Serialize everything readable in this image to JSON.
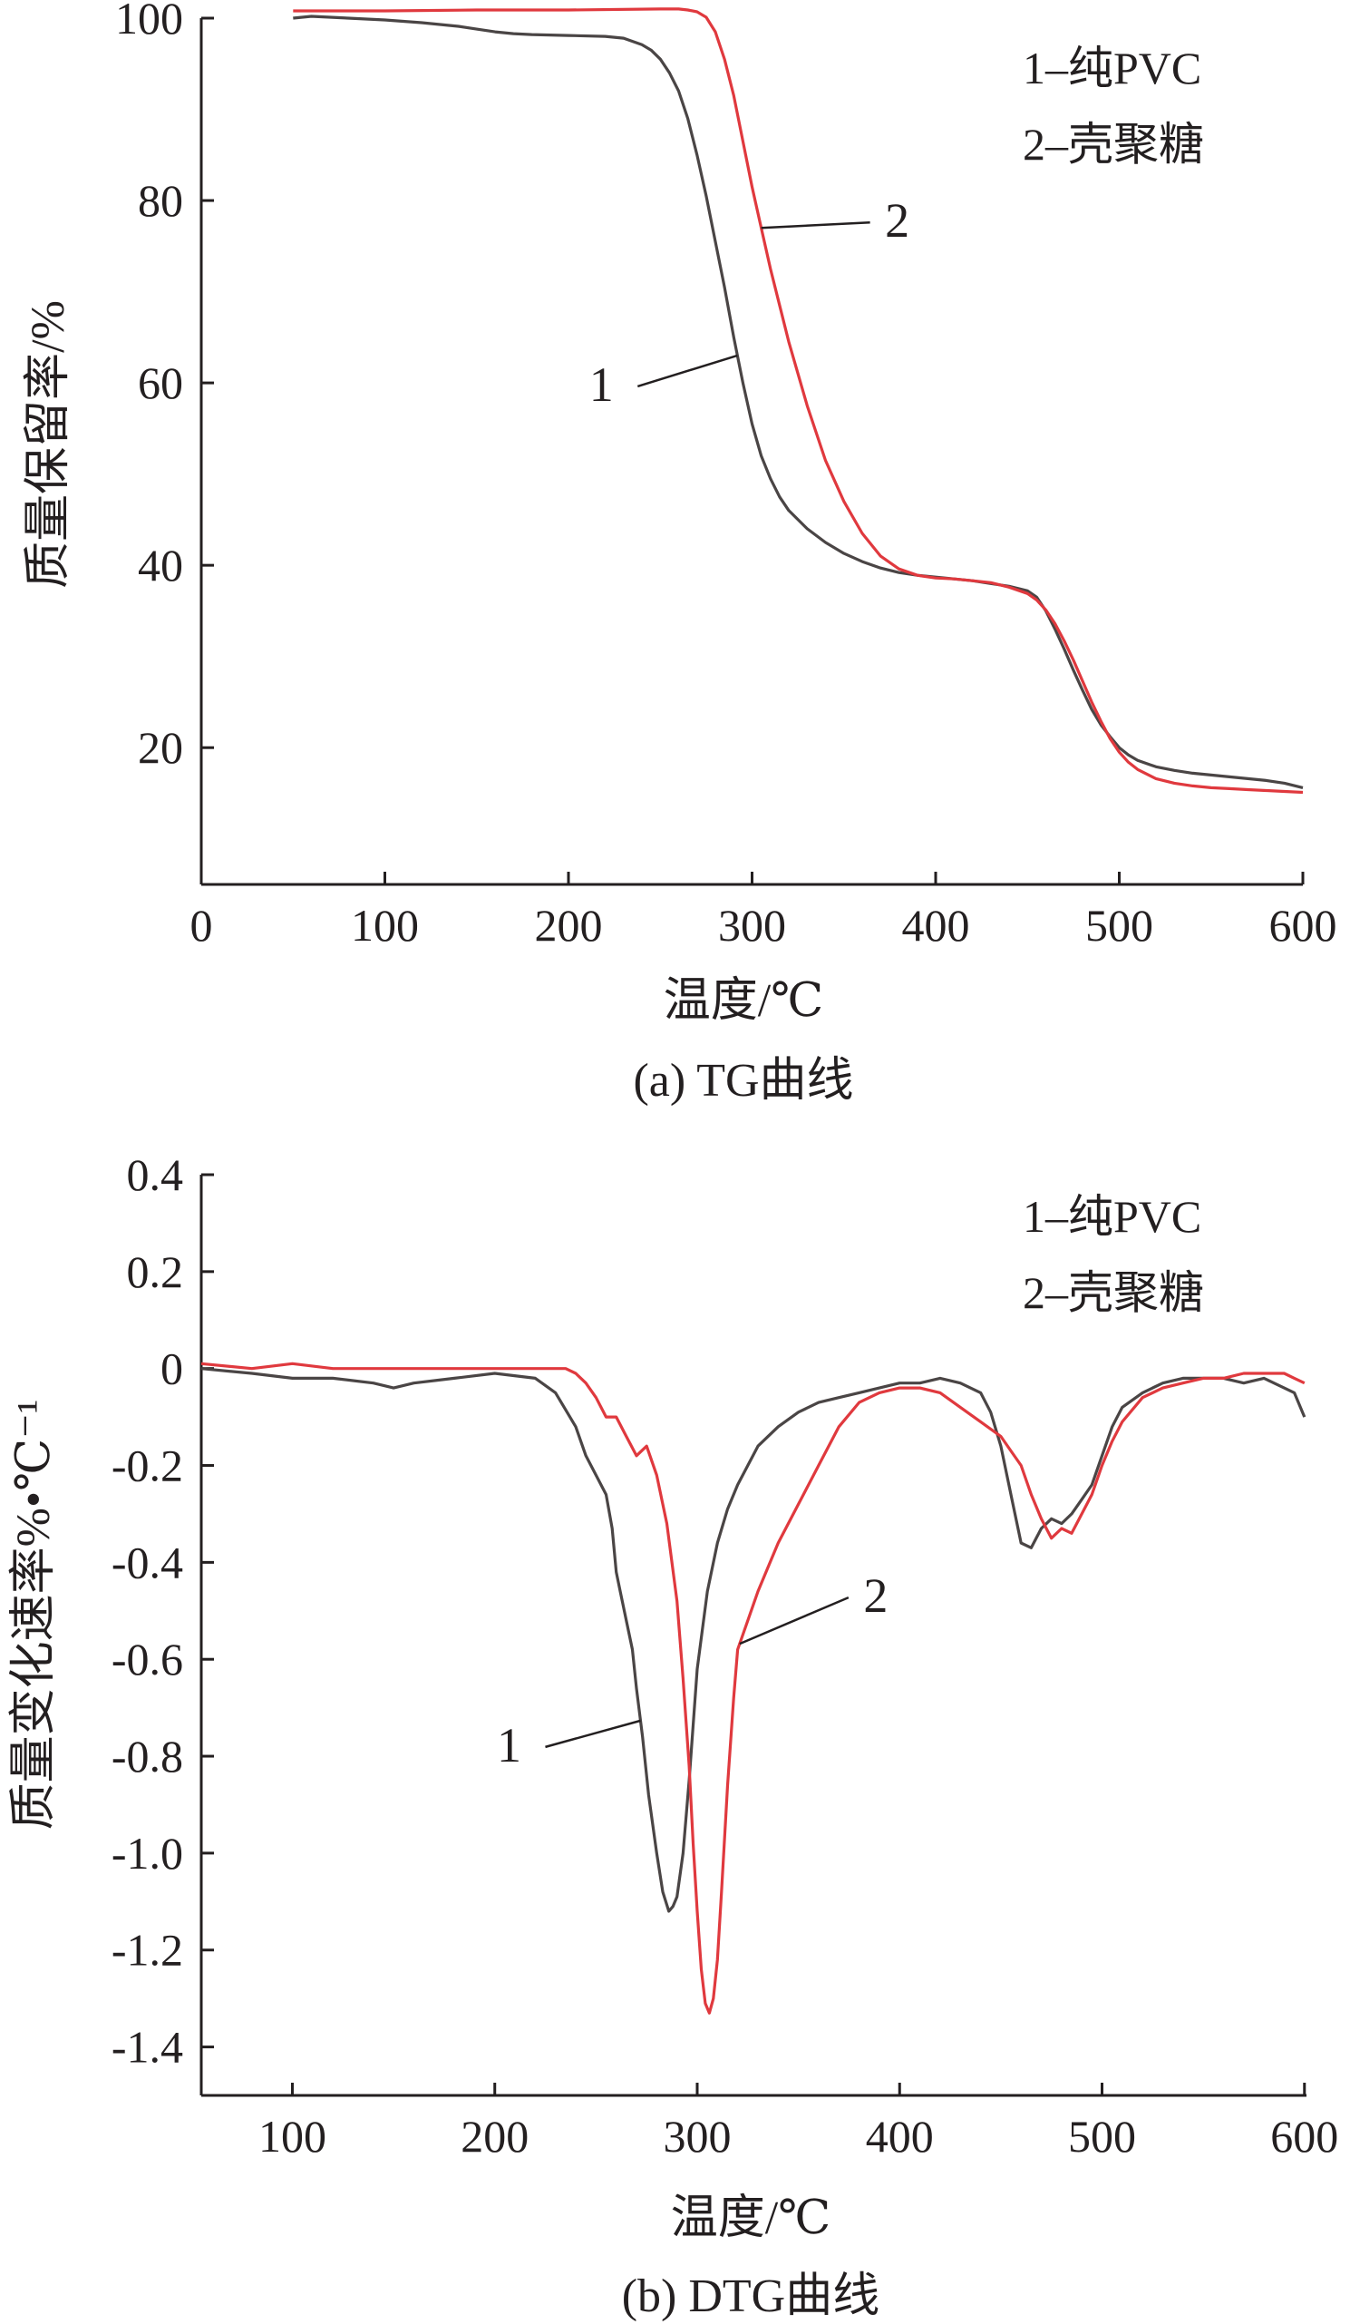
{
  "colors": {
    "series_1": "#4a4545",
    "series_2": "#e0393e",
    "axis": "#231f20"
  },
  "chart_data": [
    {
      "type": "line",
      "caption": "(a) TG曲线",
      "xlabel": "温度/℃",
      "ylabel": "质量保留率/%",
      "xlim": [
        0,
        600
      ],
      "ylim": [
        5,
        100
      ],
      "xticks": [
        0,
        100,
        200,
        300,
        400,
        500,
        600
      ],
      "xtick_labels": [
        "0",
        "100",
        "200",
        "300",
        "400",
        "500",
        "600"
      ],
      "yticks": [
        20,
        40,
        60,
        80,
        100
      ],
      "ytick_labels": [
        "20",
        "40",
        "60",
        "80",
        "100"
      ],
      "legend": [
        "1–纯PVC",
        "2–壳聚糖"
      ],
      "curve_labels": [
        {
          "text": "1",
          "series": 0,
          "at_x": 292
        },
        {
          "text": "2",
          "series": 1,
          "at_x": 305
        }
      ],
      "series": [
        {
          "name": "1",
          "x": [
            50,
            60,
            80,
            100,
            120,
            140,
            150,
            160,
            170,
            180,
            200,
            220,
            230,
            240,
            245,
            250,
            255,
            260,
            265,
            270,
            275,
            280,
            285,
            290,
            295,
            300,
            305,
            310,
            315,
            320,
            330,
            340,
            350,
            360,
            370,
            380,
            390,
            400,
            410,
            420,
            430,
            440,
            450,
            455,
            460,
            465,
            470,
            475,
            480,
            485,
            490,
            495,
            500,
            505,
            510,
            520,
            530,
            540,
            550,
            560,
            570,
            580,
            590,
            600
          ],
          "y": [
            100.0,
            100.2,
            100.0,
            99.8,
            99.5,
            99.1,
            98.8,
            98.5,
            98.3,
            98.2,
            98.1,
            98.0,
            97.8,
            97.1,
            96.5,
            95.5,
            94.0,
            92.0,
            89.0,
            85.0,
            80.5,
            75.5,
            70.5,
            65.0,
            60.0,
            55.5,
            52.0,
            49.5,
            47.5,
            46.0,
            44.0,
            42.5,
            41.3,
            40.4,
            39.7,
            39.2,
            38.9,
            38.7,
            38.5,
            38.3,
            38.0,
            37.7,
            37.2,
            36.5,
            35.0,
            33.0,
            30.8,
            28.5,
            26.3,
            24.2,
            22.5,
            21.2,
            20.0,
            19.2,
            18.6,
            17.9,
            17.5,
            17.2,
            17.0,
            16.8,
            16.6,
            16.4,
            16.1,
            15.6
          ]
        },
        {
          "name": "2",
          "x": [
            50,
            60,
            80,
            100,
            150,
            200,
            250,
            260,
            265,
            270,
            275,
            280,
            285,
            290,
            295,
            300,
            305,
            310,
            315,
            320,
            330,
            340,
            350,
            360,
            370,
            380,
            390,
            400,
            410,
            420,
            430,
            440,
            450,
            455,
            460,
            465,
            470,
            475,
            480,
            485,
            490,
            495,
            500,
            505,
            510,
            520,
            530,
            540,
            550,
            560,
            570,
            580,
            590,
            600
          ],
          "y": [
            100.8,
            100.8,
            100.8,
            100.8,
            100.9,
            100.9,
            101.0,
            101.0,
            100.9,
            100.7,
            100.1,
            98.5,
            95.5,
            91.5,
            86.5,
            81.5,
            77.0,
            72.5,
            68.5,
            64.5,
            57.5,
            51.5,
            47.0,
            43.5,
            41.0,
            39.6,
            38.9,
            38.6,
            38.5,
            38.3,
            38.1,
            37.6,
            36.9,
            36.2,
            35.1,
            33.6,
            31.7,
            29.6,
            27.3,
            25.0,
            22.9,
            21.0,
            19.5,
            18.4,
            17.6,
            16.6,
            16.1,
            15.8,
            15.6,
            15.5,
            15.4,
            15.3,
            15.2,
            15.1
          ]
        }
      ]
    },
    {
      "type": "line",
      "caption": "(b) DTG曲线",
      "xlabel": "温度/℃",
      "ylabel": "质量变化速率%•℃⁻¹",
      "xlim": [
        55,
        601
      ],
      "ylim": [
        -1.5,
        0.4
      ],
      "xticks": [
        100,
        200,
        300,
        400,
        500,
        600
      ],
      "xtick_labels": [
        "100",
        "200",
        "300",
        "400",
        "500",
        "600"
      ],
      "yticks": [
        0.4,
        0.2,
        0,
        -0.2,
        -0.4,
        -0.6,
        -0.8,
        -1.0,
        -1.2,
        -1.4
      ],
      "ytick_labels": [
        "0.4",
        "0.2",
        "0",
        "-0.2",
        "-0.4",
        "-0.6",
        "-0.8",
        "-1.0",
        "-1.2",
        "-1.4"
      ],
      "legend": [
        "1–纯PVC",
        "2–壳聚糖"
      ],
      "curve_labels": [
        {
          "text": "1",
          "series": 0,
          "at_x": 272
        },
        {
          "text": "2",
          "series": 1,
          "at_x": 321
        }
      ],
      "series": [
        {
          "name": "1",
          "x": [
            55,
            80,
            100,
            120,
            140,
            150,
            160,
            180,
            200,
            220,
            230,
            240,
            245,
            250,
            255,
            258,
            260,
            262,
            265,
            268,
            270,
            273,
            276,
            280,
            283,
            286,
            288,
            290,
            293,
            296,
            300,
            305,
            310,
            315,
            320,
            330,
            340,
            350,
            360,
            370,
            380,
            390,
            400,
            410,
            420,
            430,
            440,
            445,
            450,
            455,
            460,
            465,
            470,
            475,
            480,
            485,
            490,
            495,
            500,
            505,
            510,
            520,
            530,
            540,
            550,
            560,
            570,
            580,
            590,
            595,
            600
          ],
          "y": [
            0.0,
            -0.01,
            -0.02,
            -0.02,
            -0.03,
            -0.04,
            -0.03,
            -0.02,
            -0.01,
            -0.02,
            -0.05,
            -0.12,
            -0.18,
            -0.22,
            -0.26,
            -0.33,
            -0.42,
            -0.46,
            -0.52,
            -0.58,
            -0.66,
            -0.76,
            -0.88,
            -1.0,
            -1.08,
            -1.12,
            -1.11,
            -1.09,
            -1.0,
            -0.85,
            -0.62,
            -0.46,
            -0.36,
            -0.29,
            -0.24,
            -0.16,
            -0.12,
            -0.09,
            -0.07,
            -0.06,
            -0.05,
            -0.04,
            -0.03,
            -0.03,
            -0.02,
            -0.03,
            -0.05,
            -0.09,
            -0.16,
            -0.26,
            -0.36,
            -0.37,
            -0.33,
            -0.31,
            -0.32,
            -0.3,
            -0.27,
            -0.24,
            -0.18,
            -0.12,
            -0.08,
            -0.05,
            -0.03,
            -0.02,
            -0.02,
            -0.02,
            -0.03,
            -0.02,
            -0.04,
            -0.05,
            -0.1
          ]
        },
        {
          "name": "2",
          "x": [
            55,
            80,
            100,
            120,
            140,
            160,
            180,
            200,
            220,
            235,
            240,
            245,
            250,
            255,
            260,
            265,
            270,
            275,
            280,
            285,
            290,
            293,
            296,
            298,
            300,
            302,
            304,
            306,
            308,
            310,
            312,
            315,
            318,
            320,
            325,
            330,
            335,
            340,
            350,
            360,
            370,
            380,
            390,
            400,
            410,
            420,
            430,
            440,
            450,
            455,
            460,
            465,
            470,
            475,
            480,
            485,
            490,
            495,
            500,
            505,
            510,
            520,
            530,
            540,
            550,
            560,
            570,
            580,
            590,
            595,
            600
          ],
          "y": [
            0.01,
            0.0,
            0.01,
            0.0,
            0.0,
            0.0,
            0.0,
            0.0,
            0.0,
            0.0,
            -0.01,
            -0.03,
            -0.06,
            -0.1,
            -0.1,
            -0.14,
            -0.18,
            -0.16,
            -0.22,
            -0.32,
            -0.48,
            -0.64,
            -0.82,
            -0.98,
            -1.12,
            -1.24,
            -1.31,
            -1.33,
            -1.3,
            -1.22,
            -1.08,
            -0.86,
            -0.68,
            -0.58,
            -0.52,
            -0.46,
            -0.41,
            -0.36,
            -0.28,
            -0.2,
            -0.12,
            -0.07,
            -0.05,
            -0.04,
            -0.04,
            -0.05,
            -0.08,
            -0.11,
            -0.14,
            -0.17,
            -0.2,
            -0.26,
            -0.31,
            -0.35,
            -0.33,
            -0.34,
            -0.3,
            -0.26,
            -0.2,
            -0.15,
            -0.11,
            -0.06,
            -0.04,
            -0.03,
            -0.02,
            -0.02,
            -0.01,
            -0.01,
            -0.01,
            -0.02,
            -0.03
          ]
        }
      ]
    }
  ]
}
